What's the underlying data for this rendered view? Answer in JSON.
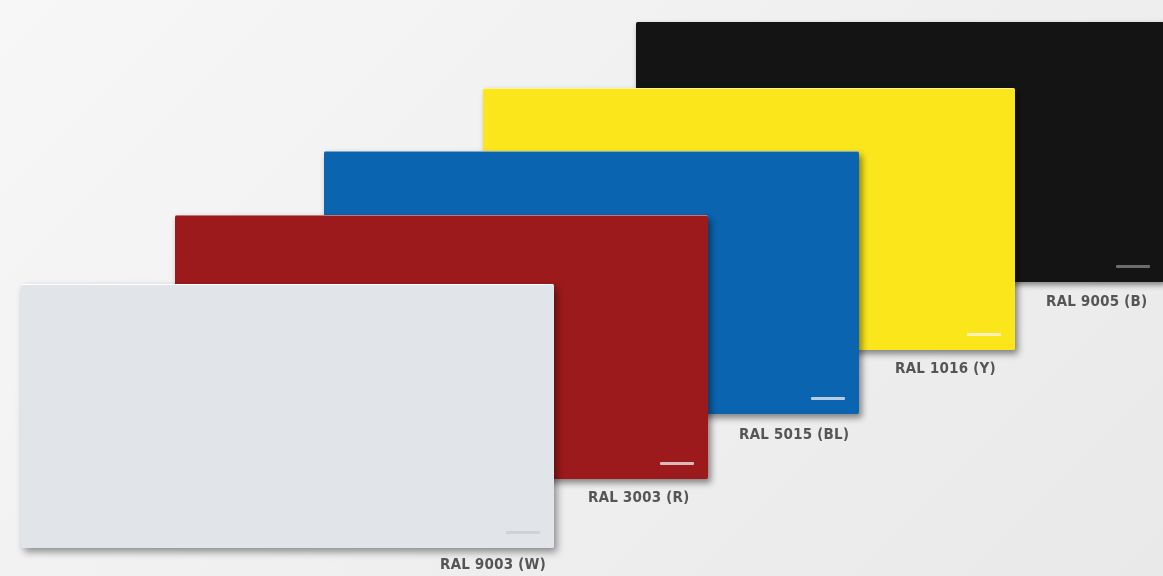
{
  "panels": [
    {
      "id": "black",
      "label": "RAL 9005 (B)",
      "color": "#141414",
      "logo_color": "#8a8a8a"
    },
    {
      "id": "yellow",
      "label": "RAL 1016 (Y)",
      "color": "#fbe61c",
      "logo_color": "#f4f4f4"
    },
    {
      "id": "blue",
      "label": "RAL 5015 (BL)",
      "color": "#0a64b0",
      "logo_color": "#f0f0f0"
    },
    {
      "id": "red",
      "label": "RAL 3003 (R)",
      "color": "#9c1a1c",
      "logo_color": "#f0f0f0"
    },
    {
      "id": "white",
      "label": "RAL 9003 (W)",
      "color": "#e1e4e8",
      "logo_color": "#c8cbd0"
    }
  ]
}
